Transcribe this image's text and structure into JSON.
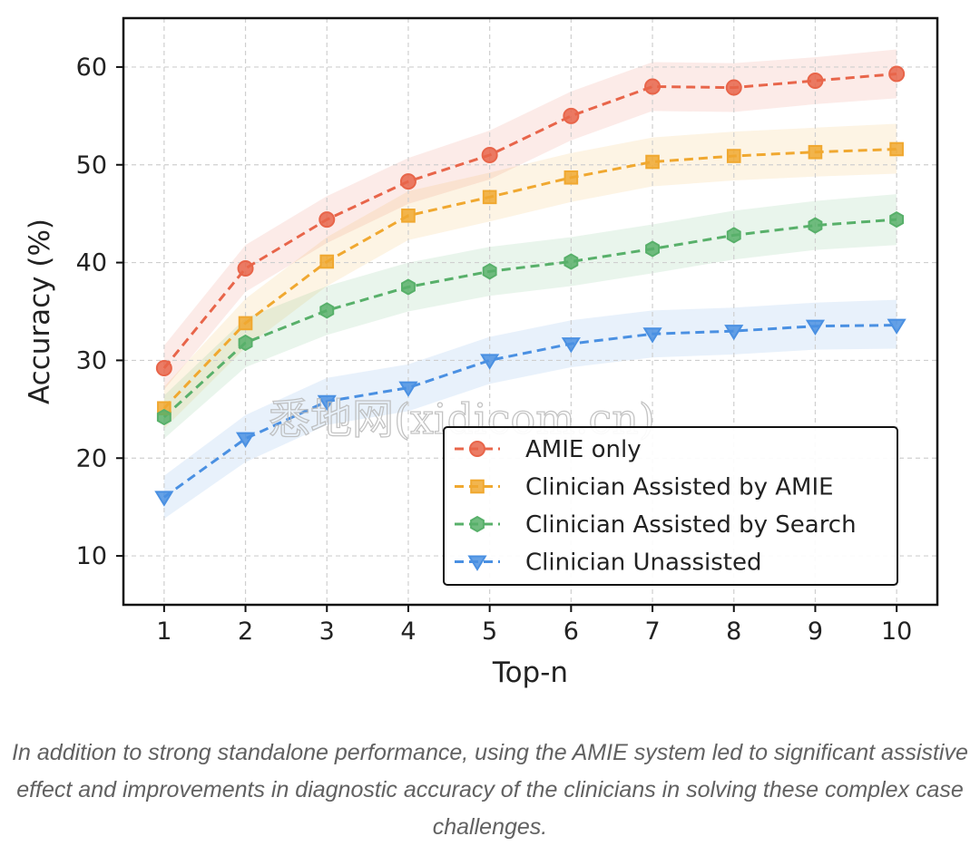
{
  "chart_data": {
    "type": "line",
    "x": [
      1,
      2,
      3,
      4,
      5,
      6,
      7,
      8,
      9,
      10
    ],
    "xlabel": "Top-n",
    "ylabel": "Accuracy (%)",
    "xlim": [
      0.5,
      10.5
    ],
    "ylim": [
      5,
      65
    ],
    "xticks": [
      1,
      2,
      3,
      4,
      5,
      6,
      7,
      8,
      9,
      10
    ],
    "yticks": [
      10,
      20,
      30,
      40,
      50,
      60
    ],
    "grid": true,
    "legend_position": "lower-right",
    "series": [
      {
        "name": "AMIE only",
        "color": "#e8654a",
        "marker": "circle",
        "values": [
          29.2,
          39.4,
          44.4,
          48.3,
          51.0,
          55.0,
          58.0,
          57.9,
          58.6,
          59.3
        ],
        "lower": [
          27.0,
          37.0,
          42.0,
          46.0,
          48.5,
          52.5,
          55.5,
          55.4,
          56.2,
          56.8
        ],
        "upper": [
          31.5,
          41.8,
          46.8,
          50.7,
          53.5,
          57.5,
          60.5,
          60.4,
          61.0,
          61.8
        ]
      },
      {
        "name": "Clinician Assisted by AMIE",
        "color": "#f0a830",
        "marker": "square",
        "values": [
          25.1,
          33.8,
          40.1,
          44.8,
          46.7,
          48.7,
          50.3,
          50.9,
          51.3,
          51.6
        ],
        "lower": [
          23.0,
          31.3,
          37.6,
          42.3,
          44.2,
          46.2,
          47.8,
          48.4,
          48.8,
          49.1
        ],
        "upper": [
          27.3,
          36.3,
          42.6,
          47.3,
          49.2,
          51.2,
          52.8,
          53.4,
          53.8,
          54.2
        ]
      },
      {
        "name": "Clinician Assisted by Search",
        "color": "#58b06a",
        "marker": "hexagon",
        "values": [
          24.2,
          31.8,
          35.1,
          37.5,
          39.1,
          40.1,
          41.4,
          42.8,
          43.8,
          44.4
        ],
        "lower": [
          22.0,
          29.3,
          32.6,
          35.0,
          36.6,
          37.6,
          38.9,
          40.3,
          41.3,
          41.8
        ],
        "upper": [
          26.4,
          34.3,
          37.6,
          40.0,
          41.6,
          42.6,
          43.9,
          45.3,
          46.3,
          47.0
        ]
      },
      {
        "name": "Clinician Unassisted",
        "color": "#4a90e2",
        "marker": "triangle-down",
        "values": [
          16.0,
          22.0,
          25.8,
          27.2,
          30.0,
          31.7,
          32.7,
          33.0,
          33.5,
          33.6
        ],
        "lower": [
          13.8,
          19.6,
          23.4,
          24.8,
          27.6,
          29.3,
          30.3,
          30.6,
          31.1,
          31.2
        ],
        "upper": [
          18.2,
          24.4,
          28.2,
          29.6,
          32.4,
          34.1,
          35.1,
          35.4,
          35.9,
          36.2
        ]
      }
    ]
  },
  "watermark": "悉地网(xidicom.cn)",
  "caption": "In addition to strong standalone performance, using the AMIE system led to significant assistive effect and improvements in diagnostic accuracy of the clinicians in solving these complex case challenges."
}
